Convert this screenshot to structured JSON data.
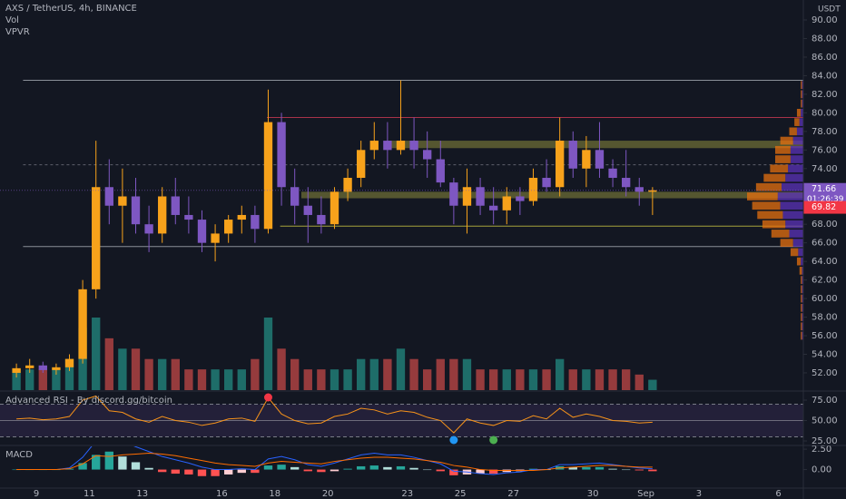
{
  "chart_data": [
    {
      "type": "candlestick",
      "title": "AXS / TetherUS, 4h, BINANCE",
      "indicators": [
        "Vol",
        "VPVR"
      ],
      "unit": "USDT",
      "x": [
        8.25,
        8.75,
        9.25,
        9.75,
        10.25,
        10.75,
        11.25,
        11.75,
        12.25,
        12.75,
        13.25,
        13.75,
        14.25,
        14.75,
        15.25,
        15.75,
        16.25,
        16.75,
        17.25,
        17.75,
        18.25,
        18.75,
        19.25,
        19.75,
        20.25,
        20.75,
        21.25,
        21.75,
        22.25,
        22.75,
        23.25,
        23.75,
        24.25,
        24.75,
        25.25,
        25.75,
        26.25,
        26.75,
        27.25,
        27.75,
        28.25,
        28.75,
        29.25,
        29.75,
        30.25,
        30.75,
        31.25,
        31.75,
        32.25
      ],
      "open": [
        52,
        52.5,
        52.8,
        52.3,
        52.6,
        53.5,
        61,
        72,
        70,
        71,
        68,
        67,
        71,
        69,
        68.5,
        66,
        67,
        68.5,
        69,
        67.5,
        79,
        72,
        70,
        69,
        68,
        71.5,
        73,
        76,
        77,
        76,
        77,
        76,
        75,
        72.5,
        70,
        72,
        70,
        69.5,
        71,
        70.5,
        73,
        72,
        77,
        74,
        76,
        74,
        73,
        72,
        71.5
      ],
      "high": [
        53,
        53.5,
        53.2,
        53,
        54,
        62,
        77,
        75,
        74,
        73,
        70,
        72,
        73,
        71,
        69.5,
        68,
        69,
        70,
        70,
        82.5,
        80,
        74,
        72,
        71,
        72,
        74,
        77,
        79,
        79,
        83.5,
        79.5,
        78,
        77,
        73,
        74,
        73,
        72,
        72,
        72,
        74,
        75,
        79.5,
        78,
        77.5,
        79,
        75,
        76,
        73,
        72
      ],
      "low": [
        51.5,
        52,
        52,
        51.8,
        52.2,
        53,
        60,
        68,
        66,
        67,
        65,
        66,
        68,
        67,
        65,
        64,
        66,
        67,
        66,
        67,
        70,
        68,
        66,
        67,
        67.5,
        70.5,
        72,
        75,
        74,
        75.5,
        74,
        73,
        72,
        68,
        67,
        69,
        68,
        68,
        69,
        70,
        71.5,
        71,
        73,
        72,
        73,
        72,
        71,
        70,
        69
      ],
      "close": [
        52.5,
        52.8,
        52.3,
        52.6,
        53.5,
        61,
        72,
        70,
        71,
        68,
        67,
        71,
        69,
        68.5,
        66,
        67,
        68.5,
        69,
        67.5,
        79,
        72,
        70,
        69,
        68,
        71.5,
        73,
        76,
        77,
        76,
        77,
        76,
        75,
        72.5,
        70,
        72,
        70,
        69.5,
        71,
        70.5,
        73,
        72,
        77,
        74,
        76,
        74,
        73,
        72,
        71.5,
        71.66
      ],
      "volume": [
        2,
        2,
        2,
        2,
        3,
        6,
        7,
        5,
        4,
        4,
        3,
        3,
        3,
        2,
        2,
        2,
        2,
        2,
        3,
        7,
        4,
        3,
        2,
        2,
        2,
        2,
        3,
        3,
        3,
        4,
        3,
        2,
        3,
        3,
        3,
        2,
        2,
        2,
        2,
        2,
        2,
        3,
        2,
        2,
        2,
        2,
        2,
        1.5,
        1
      ],
      "up_color": "#f7a21b",
      "down_color": "#7e57c2",
      "volume_up_color": "#26a69a",
      "volume_down_color": "#ef5350",
      "xlim": [
        7.63,
        37.94
      ],
      "xticks": [
        9,
        11,
        13,
        16,
        18,
        20,
        23,
        25,
        27,
        30,
        {
          "value": 32,
          "label": "Sep"
        },
        3.0001,
        6.0001
      ],
      "ylim": [
        50.14,
        92.15
      ],
      "yticks": [
        {
          "value": 52,
          "label": "52.00"
        },
        {
          "value": 54,
          "label": "54.00"
        },
        {
          "value": 56,
          "label": "56.00"
        },
        {
          "value": 58,
          "label": "58.00"
        },
        {
          "value": 60,
          "label": "60.00"
        },
        {
          "value": 62,
          "label": "62.00"
        },
        {
          "value": 64,
          "label": "64.00"
        },
        {
          "value": 66,
          "label": "66.00"
        },
        {
          "value": 68,
          "label": "68.00"
        },
        {
          "value": 70,
          "label": "70.00"
        },
        {
          "value": 72,
          "label": "72.00"
        },
        {
          "value": 74,
          "label": "74.00"
        },
        {
          "value": 76,
          "label": "76.00"
        },
        {
          "value": 78,
          "label": "78.00"
        },
        {
          "value": 80,
          "label": "80.00"
        },
        {
          "value": 82,
          "label": "82.00"
        },
        {
          "value": 84,
          "label": "84.00"
        },
        {
          "value": 86,
          "label": "86.00"
        },
        {
          "value": 88,
          "label": "88.00"
        },
        {
          "value": 90,
          "label": "90.00"
        }
      ],
      "last_price": 71.66,
      "countdown": "01:26:39",
      "last_price_color": "#7e57c2",
      "marked_price": 69.82,
      "marked_price_color": "#f23645",
      "levels": [
        {
          "value": 83.5,
          "x": 8.5,
          "color": "#8a8f98"
        },
        {
          "value": 65.6,
          "x": 8.5,
          "color": "#8a8f98"
        },
        {
          "value": 79.5,
          "x": 17.7,
          "color": "#a8324a"
        },
        {
          "value": 67.8,
          "x": 18.2,
          "color": "#a5a23a"
        }
      ],
      "dashed_levels": [
        {
          "value": 74.4,
          "x": 8.5,
          "color": "#5d606b"
        }
      ],
      "zones": [
        {
          "low": 76.2,
          "high": 77,
          "x": 22.2,
          "color": "#8d8a3c"
        },
        {
          "low": 70.8,
          "high": 71.5,
          "x": 19,
          "color": "#8d8a3c"
        }
      ],
      "volume_profile": {
        "prices": [
          56,
          57,
          58,
          59,
          60,
          61,
          62,
          63,
          64,
          65,
          66,
          67,
          68,
          69,
          70,
          71,
          72,
          73,
          74,
          75,
          76,
          77,
          78,
          79,
          80,
          81,
          82,
          83
        ],
        "up": [
          1,
          1,
          1,
          1,
          1,
          1,
          1,
          2,
          3,
          6,
          10,
          14,
          18,
          20,
          22,
          24,
          20,
          17,
          14,
          12,
          12,
          10,
          6,
          4,
          3,
          1,
          1,
          1
        ],
        "down": [
          1,
          1,
          1,
          1,
          1,
          1,
          1,
          1,
          2,
          4,
          8,
          11,
          14,
          16,
          18,
          20,
          17,
          14,
          12,
          10,
          10,
          8,
          5,
          3,
          2,
          1,
          1,
          1
        ],
        "up_color": "#e5700f",
        "down_color": "#5b33b8"
      }
    },
    {
      "type": "line",
      "title": "Advanced RSI - By discord.gg/bitcoin",
      "values": [
        52,
        53,
        51,
        52,
        55,
        75,
        80,
        62,
        60,
        52,
        48,
        55,
        50,
        48,
        44,
        47,
        52,
        53,
        49,
        78,
        58,
        50,
        46,
        47,
        55,
        58,
        65,
        63,
        58,
        62,
        60,
        54,
        50,
        35,
        52,
        47,
        44,
        50,
        49,
        56,
        52,
        65,
        54,
        58,
        55,
        50,
        49,
        47,
        48
      ],
      "color": "#f7931a",
      "band": [
        30,
        70
      ],
      "band_color": "#7e57c2",
      "midline": 50,
      "ylim": [
        20.6,
        85
      ],
      "yticks": [
        {
          "value": 75,
          "label": "75.00"
        },
        {
          "value": 50,
          "label": "50.00"
        },
        {
          "value": 25,
          "label": "25.00"
        }
      ],
      "signals": [
        {
          "x": 17.75,
          "side": "top",
          "color": "#f23645"
        },
        {
          "x": 24.75,
          "side": "bottom",
          "color": "#2196f3"
        },
        {
          "x": 26.25,
          "side": "bottom",
          "color": "#4caf50"
        }
      ]
    },
    {
      "type": "macd",
      "title": "MACD",
      "histogram": [
        0,
        0,
        0,
        0,
        0.1,
        0.8,
        1.8,
        2.2,
        1.6,
        0.9,
        0.2,
        -0.3,
        -0.5,
        -0.6,
        -0.8,
        -0.8,
        -0.6,
        -0.4,
        -0.4,
        0.5,
        0.6,
        0.3,
        -0.2,
        -0.3,
        -0.2,
        0.1,
        0.4,
        0.5,
        0.3,
        0.4,
        0.2,
        0,
        -0.2,
        -0.7,
        -0.6,
        -0.5,
        -0.5,
        -0.3,
        -0.2,
        0.1,
        0,
        0.4,
        0.3,
        0.3,
        0.3,
        0.1,
        0,
        -0.1,
        -0.2
      ],
      "macd": [
        0,
        0,
        0,
        0,
        0.2,
        1.5,
        3.5,
        3.8,
        3.4,
        2.8,
        2.2,
        1.6,
        1.2,
        0.8,
        0.3,
        0,
        0,
        0.1,
        0,
        1.3,
        1.6,
        1.2,
        0.6,
        0.4,
        0.8,
        1.3,
        1.8,
        2.0,
        1.8,
        1.8,
        1.5,
        1.1,
        0.7,
        -0.2,
        -0.3,
        -0.5,
        -0.6,
        -0.4,
        -0.3,
        0,
        0,
        0.6,
        0.6,
        0.7,
        0.8,
        0.6,
        0.4,
        0.2,
        0.1
      ],
      "signal": [
        0,
        0,
        0,
        0,
        0.1,
        0.7,
        1.7,
        1.6,
        1.8,
        1.9,
        2.0,
        1.9,
        1.7,
        1.4,
        1.1,
        0.8,
        0.6,
        0.5,
        0.4,
        0.8,
        1.0,
        0.9,
        0.8,
        0.7,
        1.0,
        1.2,
        1.4,
        1.5,
        1.5,
        1.4,
        1.3,
        1.1,
        0.9,
        0.5,
        0.3,
        0,
        -0.1,
        -0.1,
        -0.1,
        -0.1,
        0,
        0.2,
        0.3,
        0.4,
        0.5,
        0.5,
        0.4,
        0.3,
        0.3
      ],
      "macd_color": "#2962ff",
      "signal_color": "#ff6d00",
      "colors": [
        "#26a69a",
        "#b2dfdb",
        "#ffcdd2",
        "#ff5252"
      ],
      "ylim": [
        -2.16,
        2.84
      ],
      "yticks": [
        {
          "value": 2.5,
          "label": "2.50"
        },
        {
          "value": 0,
          "label": "0.00"
        }
      ]
    }
  ]
}
